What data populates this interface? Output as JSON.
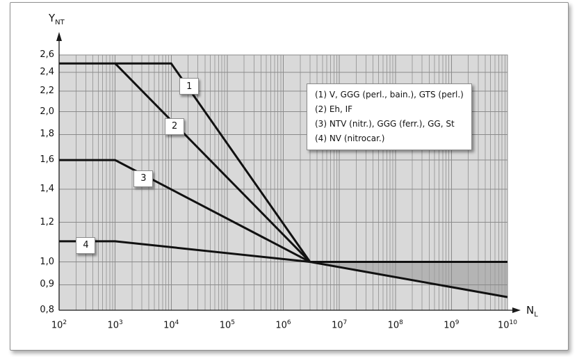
{
  "chart_data": {
    "type": "line",
    "title": "",
    "x_axis": {
      "label_base": "N",
      "label_sub": "L",
      "scale": "log",
      "min": 100,
      "max": 10000000000,
      "tick_mantissa": "10",
      "tick_exponents": [
        "2",
        "3",
        "4",
        "5",
        "6",
        "7",
        "8",
        "9",
        "10"
      ]
    },
    "y_axis": {
      "label_base": "Y",
      "label_sub": "NT",
      "scale": "log",
      "min": 0.8,
      "max": 2.6,
      "ticks": [
        {
          "v": 2.6,
          "label": "2,6"
        },
        {
          "v": 2.4,
          "label": "2,4"
        },
        {
          "v": 2.2,
          "label": "2,2"
        },
        {
          "v": 2.0,
          "label": "2,0"
        },
        {
          "v": 1.8,
          "label": "1,8"
        },
        {
          "v": 1.6,
          "label": "1,6"
        },
        {
          "v": 1.4,
          "label": "1,4"
        },
        {
          "v": 1.2,
          "label": "1,2"
        },
        {
          "v": 1.0,
          "label": "1,0"
        },
        {
          "v": 0.9,
          "label": "0,9"
        },
        {
          "v": 0.8,
          "label": "0,8"
        }
      ]
    },
    "grid": {
      "on": true,
      "minor_x_per_decade": true
    },
    "gridline_values_y": [
      0.9,
      1.0,
      1.2,
      1.4,
      1.6,
      1.8,
      2.0,
      2.2,
      2.4
    ],
    "series": [
      {
        "id": "curve-1",
        "points": [
          [
            100,
            2.5
          ],
          [
            10000,
            2.5
          ],
          [
            3000000,
            1.0
          ]
        ]
      },
      {
        "id": "curve-2",
        "points": [
          [
            1000,
            2.5
          ],
          [
            3000000,
            1.0
          ]
        ]
      },
      {
        "id": "curve-3",
        "points": [
          [
            100,
            1.6
          ],
          [
            1000,
            1.6
          ],
          [
            3000000,
            1.0
          ]
        ]
      },
      {
        "id": "curve-4",
        "points": [
          [
            100,
            1.1
          ],
          [
            1000,
            1.1
          ],
          [
            3000000,
            1.0
          ]
        ]
      },
      {
        "id": "long-life-constant",
        "points": [
          [
            3000000,
            1.0
          ],
          [
            10000000000,
            1.0
          ]
        ]
      },
      {
        "id": "long-life-declining",
        "points": [
          [
            3000000,
            1.0
          ],
          [
            10000000000,
            0.85
          ]
        ]
      }
    ],
    "shaded_region": {
      "upper": "long-life-constant",
      "lower": "long-life-declining",
      "color": "#b4b4b4"
    },
    "curve_labels": [
      {
        "text": "1",
        "x": 21000,
        "y": 2.25
      },
      {
        "text": "2",
        "x": 11500,
        "y": 1.87
      },
      {
        "text": "3",
        "x": 3200,
        "y": 1.47
      },
      {
        "text": "4",
        "x": 300,
        "y": 1.08
      }
    ],
    "legend": {
      "position": "upper-right-inside",
      "entries": [
        "(1) V, GGG (perl., bain.), GTS (perl.)",
        "(2) Eh, IF",
        "(3) NTV (nitr.), GGG (ferr.), GG, St",
        "(4) NV (nitrocar.)"
      ]
    },
    "line_width": 3,
    "colors": {
      "plot_bg": "#d9d9d9",
      "grid_minor": "#9e9e9e",
      "grid_major": "#8a8a8a",
      "curve": "#111111",
      "axis": "#1a1a1a",
      "text": "#111111",
      "frame_border": "#8f8f8f",
      "box_bg": "#ffffff"
    }
  }
}
